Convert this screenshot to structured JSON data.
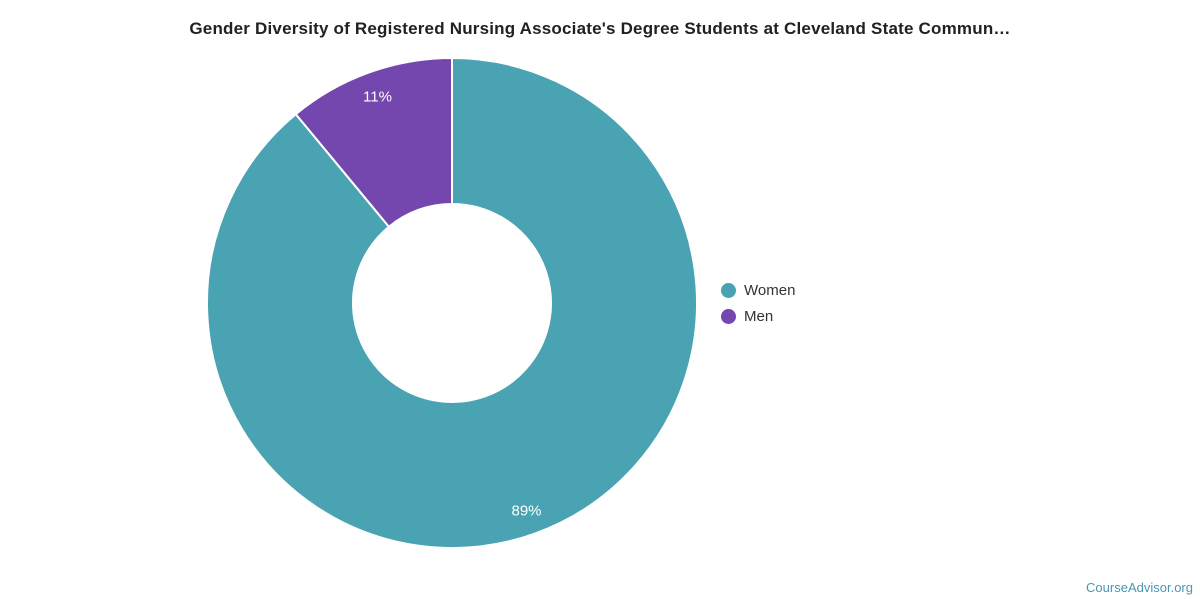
{
  "page": {
    "background": "#FFFFFF"
  },
  "chart_data": {
    "type": "pie",
    "subtype": "donut",
    "title": "Gender Diversity of Registered Nursing Associate's Degree Students at Cleveland State Commun…",
    "title_color": "#212121",
    "categories": [
      "Women",
      "Men"
    ],
    "series": [
      {
        "name": "Women",
        "value": 89,
        "data_label": "89%",
        "color": "#4AA3B2"
      },
      {
        "name": "Men",
        "value": 11,
        "data_label": "11%",
        "color": "#7447AE"
      }
    ],
    "data_label_color": "#FFFFFF",
    "slice_border_color": "#FFFFFF",
    "inner_radius_ratio": 0.4,
    "start_angle_deg": 0,
    "direction": "clockwise",
    "legend_position": "right",
    "legend_text_color": "#333333"
  },
  "attribution": {
    "text": "CourseAdvisor.org",
    "color": "#4897B5"
  }
}
